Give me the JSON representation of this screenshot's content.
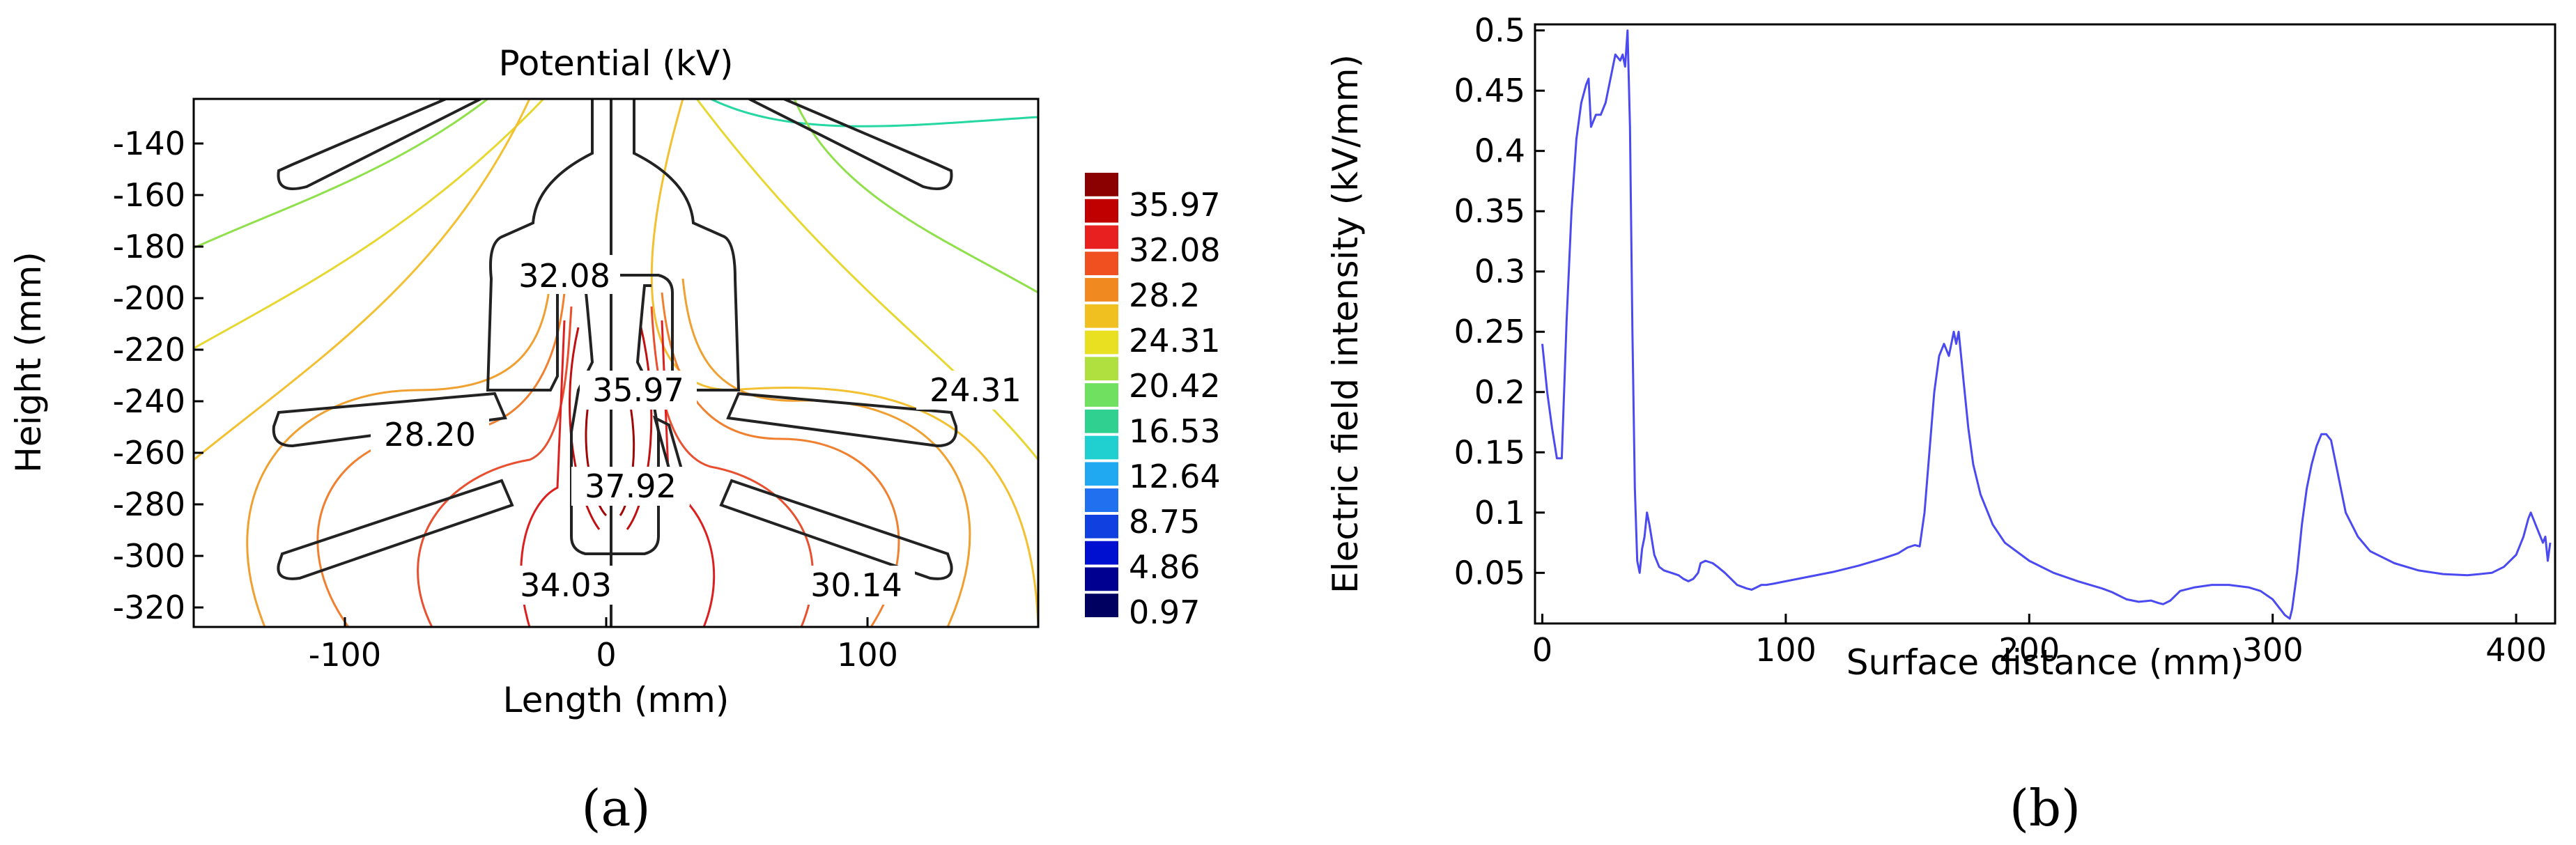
{
  "panel_a": {
    "caption": "(a)",
    "title": "Potential (kV)",
    "xlabel": "Length (mm)",
    "ylabel": "Height (mm)",
    "x_ticks": [
      "-100",
      "0",
      "100"
    ],
    "y_ticks": [
      "-140",
      "-160",
      "-180",
      "-200",
      "-220",
      "-240",
      "-260",
      "-280",
      "-300",
      "-320"
    ],
    "colorbar_labels": [
      "35.97",
      "32.08",
      "28.2",
      "24.31",
      "20.42",
      "16.53",
      "12.64",
      "8.75",
      "4.86",
      "0.97"
    ],
    "contour_labels": [
      "32.08",
      "35.97",
      "24.31",
      "28.20",
      "37.92",
      "34.03",
      "30.14"
    ]
  },
  "panel_b": {
    "caption": "(b)",
    "line_color": "#4a4af0"
  },
  "chart_data": [
    {
      "type": "contour",
      "title": "Potential (kV)",
      "xlabel": "Length (mm)",
      "ylabel": "Height (mm)",
      "xlim": [
        -165,
        165
      ],
      "ylim": [
        -325,
        -120
      ],
      "colorbar": {
        "min": 0.97,
        "max": 37.92,
        "tick_values": [
          35.97,
          32.08,
          28.2,
          24.31,
          20.42,
          16.53,
          12.64,
          8.75,
          4.86,
          0.97
        ]
      },
      "contour_labels": [
        {
          "value": 32.08,
          "x": -17,
          "y": -192
        },
        {
          "value": 35.97,
          "x": 14,
          "y": -237
        },
        {
          "value": 24.31,
          "x": 150,
          "y": -237
        },
        {
          "value": 28.2,
          "x": -83,
          "y": -256
        },
        {
          "value": 37.92,
          "x": 9,
          "y": -283
        },
        {
          "value": 34.03,
          "x": -16,
          "y": -313
        },
        {
          "value": 30.14,
          "x": 82,
          "y": -313
        }
      ]
    },
    {
      "type": "line",
      "xlabel": "Surface distance (mm)",
      "ylabel": "Electric field intensity (kV/mm)",
      "xlim": [
        -3,
        416
      ],
      "ylim": [
        0.008,
        0.505
      ],
      "x_ticks": [
        0,
        100,
        200,
        300,
        400
      ],
      "y_ticks": [
        0.05,
        0.1,
        0.15,
        0.2,
        0.25,
        0.3,
        0.35,
        0.4,
        0.45,
        0.5
      ],
      "grid": false,
      "series": [
        {
          "x": [
            0,
            2,
            4,
            6,
            8,
            10,
            12,
            14,
            16,
            18,
            19,
            20,
            22,
            24,
            26,
            28,
            30,
            32,
            33,
            34,
            35,
            36,
            37,
            38,
            39,
            40,
            41,
            42,
            43,
            44,
            46,
            48,
            50,
            53,
            56,
            58,
            60,
            62,
            64,
            65,
            67,
            70,
            72,
            75,
            80,
            84,
            86,
            88,
            90,
            92,
            95,
            100,
            110,
            120,
            130,
            140,
            146,
            150,
            153,
            155,
            157,
            159,
            161,
            163,
            165,
            167,
            169,
            170,
            171,
            172,
            173,
            175,
            177,
            180,
            185,
            190,
            200,
            210,
            220,
            230,
            234,
            236,
            240,
            245,
            250,
            253,
            255,
            258,
            262,
            268,
            275,
            282,
            290,
            295,
            300,
            305,
            307,
            308,
            310,
            312,
            314,
            316,
            318,
            320,
            322,
            324,
            326,
            328,
            330,
            335,
            340,
            350,
            360,
            370,
            380,
            390,
            395,
            400,
            403,
            405,
            406,
            407,
            409,
            411,
            412,
            413,
            414
          ],
          "y": [
            0.24,
            0.2,
            0.17,
            0.145,
            0.145,
            0.26,
            0.35,
            0.41,
            0.44,
            0.455,
            0.46,
            0.42,
            0.43,
            0.43,
            0.44,
            0.46,
            0.48,
            0.475,
            0.48,
            0.47,
            0.5,
            0.42,
            0.25,
            0.12,
            0.06,
            0.05,
            0.07,
            0.08,
            0.1,
            0.09,
            0.065,
            0.055,
            0.052,
            0.05,
            0.048,
            0.045,
            0.043,
            0.045,
            0.05,
            0.058,
            0.06,
            0.058,
            0.055,
            0.05,
            0.04,
            0.037,
            0.036,
            0.038,
            0.04,
            0.04,
            0.041,
            0.043,
            0.047,
            0.051,
            0.056,
            0.062,
            0.066,
            0.071,
            0.073,
            0.072,
            0.1,
            0.15,
            0.2,
            0.23,
            0.24,
            0.23,
            0.25,
            0.24,
            0.25,
            0.23,
            0.21,
            0.17,
            0.14,
            0.115,
            0.09,
            0.075,
            0.06,
            0.05,
            0.043,
            0.037,
            0.034,
            0.032,
            0.028,
            0.026,
            0.027,
            0.025,
            0.024,
            0.027,
            0.035,
            0.038,
            0.04,
            0.04,
            0.038,
            0.035,
            0.028,
            0.015,
            0.012,
            0.02,
            0.05,
            0.09,
            0.12,
            0.14,
            0.155,
            0.165,
            0.165,
            0.16,
            0.14,
            0.12,
            0.1,
            0.08,
            0.068,
            0.058,
            0.052,
            0.049,
            0.048,
            0.05,
            0.055,
            0.065,
            0.08,
            0.095,
            0.1,
            0.095,
            0.085,
            0.075,
            0.08,
            0.06,
            0.075
          ]
        }
      ]
    }
  ]
}
